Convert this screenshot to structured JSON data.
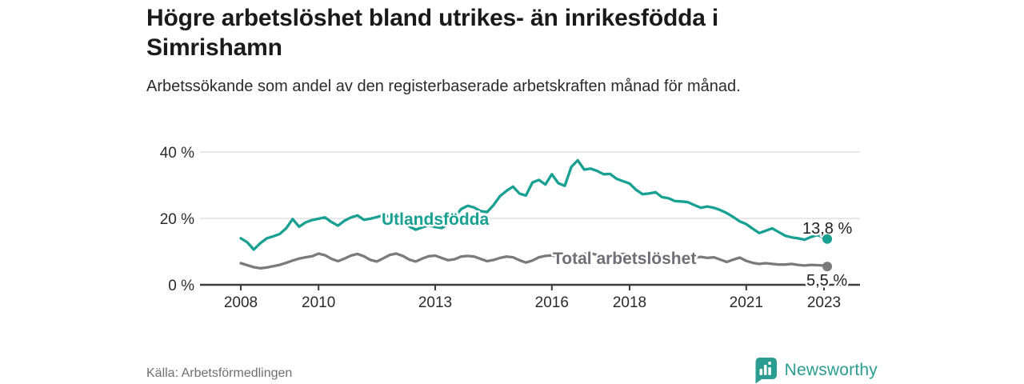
{
  "header": {
    "title": "Högre arbetslöshet bland utrikes- än inrikesfödda i Simrishamn",
    "subtitle": "Arbetssökande som andel av den registerbaserade arbetskraften månad för månad."
  },
  "footer": {
    "source": "Källa: Arbetsförmedlingen",
    "brand": "Newsworthy",
    "brand_color": "#2a9c90"
  },
  "chart_data": {
    "type": "line",
    "title": "Högre arbetslöshet bland utrikes- än inrikesfödda i Simrishamn",
    "subtitle": "Arbetssökande som andel av den registerbaserade arbetskraften månad för månad.",
    "unit": "%",
    "x_axis": {
      "label": "",
      "range": [
        2006.95,
        2023.93
      ],
      "ticks": [
        2008,
        2010,
        2013,
        2016,
        2018,
        2021,
        2023
      ],
      "tick_labels": [
        "2008",
        "2010",
        "2013",
        "2016",
        "2018",
        "2021",
        "2023"
      ]
    },
    "y_axis": {
      "label": "",
      "range": [
        0,
        41.2
      ],
      "ticks": [
        0,
        20,
        40
      ],
      "tick_labels": [
        "0 %",
        "20 %",
        "40 %"
      ],
      "grid": true,
      "grid_color": "#d9d9d9",
      "axis_color": "#3c3c3c",
      "tick_text_color": "#2b2b2b"
    },
    "x_start": 2008.0,
    "x_step_months": 2,
    "x_last": 2023.083,
    "legend_position": "inline-labels",
    "series": [
      {
        "name": "Utlandsfödda",
        "color": "#18a092",
        "end_value": 13.8,
        "end_label": "13,8 %",
        "values": [
          14.0,
          12.8,
          10.6,
          12.5,
          14.0,
          14.6,
          15.3,
          17.0,
          19.8,
          17.5,
          18.8,
          19.5,
          19.9,
          20.3,
          18.9,
          17.8,
          19.3,
          20.3,
          20.9,
          19.6,
          19.9,
          20.4,
          21.0,
          20.5,
          19.9,
          18.9,
          17.6,
          16.6,
          17.3,
          17.9,
          17.4,
          17.1,
          18.2,
          20.4,
          22.8,
          23.8,
          23.3,
          22.2,
          21.9,
          24.0,
          26.7,
          28.3,
          29.6,
          27.5,
          26.9,
          30.8,
          31.6,
          30.2,
          33.3,
          30.6,
          29.8,
          35.5,
          37.5,
          34.7,
          35.0,
          34.3,
          33.3,
          33.4,
          31.9,
          31.2,
          30.5,
          28.6,
          27.3,
          27.5,
          27.9,
          26.4,
          26.1,
          25.2,
          25.1,
          24.9,
          24.0,
          23.2,
          23.6,
          23.2,
          22.5,
          21.6,
          20.4,
          19.1,
          18.3,
          16.9,
          15.6,
          16.3,
          17.0,
          15.9,
          14.8,
          14.3,
          14.0,
          13.6,
          14.4,
          15.0,
          14.2,
          13.8
        ]
      },
      {
        "name": "Total arbetslöshet",
        "color": "#7b7b7b",
        "end_value": 5.5,
        "end_label": "5,5 %",
        "values": [
          6.5,
          5.9,
          5.3,
          5.0,
          5.2,
          5.6,
          6.0,
          6.6,
          7.3,
          7.9,
          8.3,
          8.6,
          9.4,
          8.9,
          7.8,
          7.1,
          7.9,
          8.8,
          9.3,
          8.6,
          7.5,
          7.0,
          8.0,
          9.0,
          9.4,
          8.7,
          7.6,
          7.0,
          7.9,
          8.6,
          8.8,
          8.1,
          7.4,
          7.7,
          8.5,
          8.7,
          8.5,
          7.8,
          7.1,
          7.5,
          8.1,
          8.5,
          8.3,
          7.4,
          6.7,
          7.3,
          8.3,
          8.7,
          8.9,
          8.3,
          7.8,
          8.3,
          8.9,
          9.3,
          9.5,
          9.0,
          8.5,
          8.7,
          9.1,
          9.3,
          9.1,
          8.6,
          8.1,
          8.3,
          8.6,
          8.8,
          8.6,
          8.1,
          7.8,
          7.9,
          8.2,
          8.4,
          8.1,
          8.3,
          7.6,
          6.9,
          7.6,
          8.2,
          7.2,
          6.6,
          6.3,
          6.5,
          6.3,
          6.1,
          6.1,
          6.3,
          6.0,
          5.8,
          6.0,
          5.9,
          5.8,
          5.5
        ]
      }
    ]
  }
}
